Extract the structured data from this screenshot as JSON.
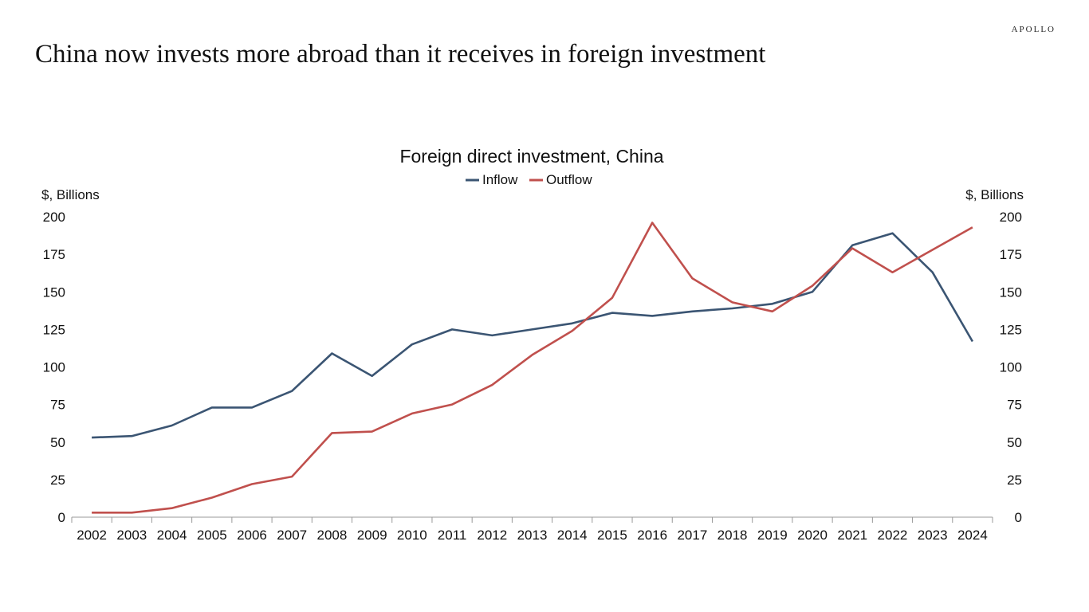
{
  "brand": "APOLLO",
  "headline": "China now invests more abroad than it receives in foreign investment",
  "chart_data": {
    "type": "line",
    "title": "Foreign direct investment, China",
    "ylabel_left": "$, Billions",
    "ylabel_right": "$, Billions",
    "ylim": [
      0,
      200
    ],
    "yticks": [
      0,
      25,
      50,
      75,
      100,
      125,
      150,
      175,
      200
    ],
    "legend_position": "top-center",
    "grid": false,
    "categories": [
      "2002",
      "2003",
      "2004",
      "2005",
      "2006",
      "2007",
      "2008",
      "2009",
      "2010",
      "2011",
      "2012",
      "2013",
      "2014",
      "2015",
      "2016",
      "2017",
      "2018",
      "2019",
      "2020",
      "2021",
      "2022",
      "2023",
      "2024"
    ],
    "series": [
      {
        "name": "Inflow",
        "color": "#3b5573",
        "values": [
          53,
          54,
          61,
          73,
          73,
          84,
          109,
          94,
          115,
          125,
          121,
          125,
          129,
          136,
          134,
          137,
          139,
          142,
          150,
          181,
          189,
          163,
          117
        ]
      },
      {
        "name": "Outflow",
        "color": "#c0504d",
        "values": [
          3,
          3,
          6,
          13,
          22,
          27,
          56,
          57,
          69,
          75,
          88,
          108,
          124,
          146,
          196,
          159,
          143,
          137,
          154,
          179,
          163,
          178,
          193
        ]
      }
    ]
  }
}
